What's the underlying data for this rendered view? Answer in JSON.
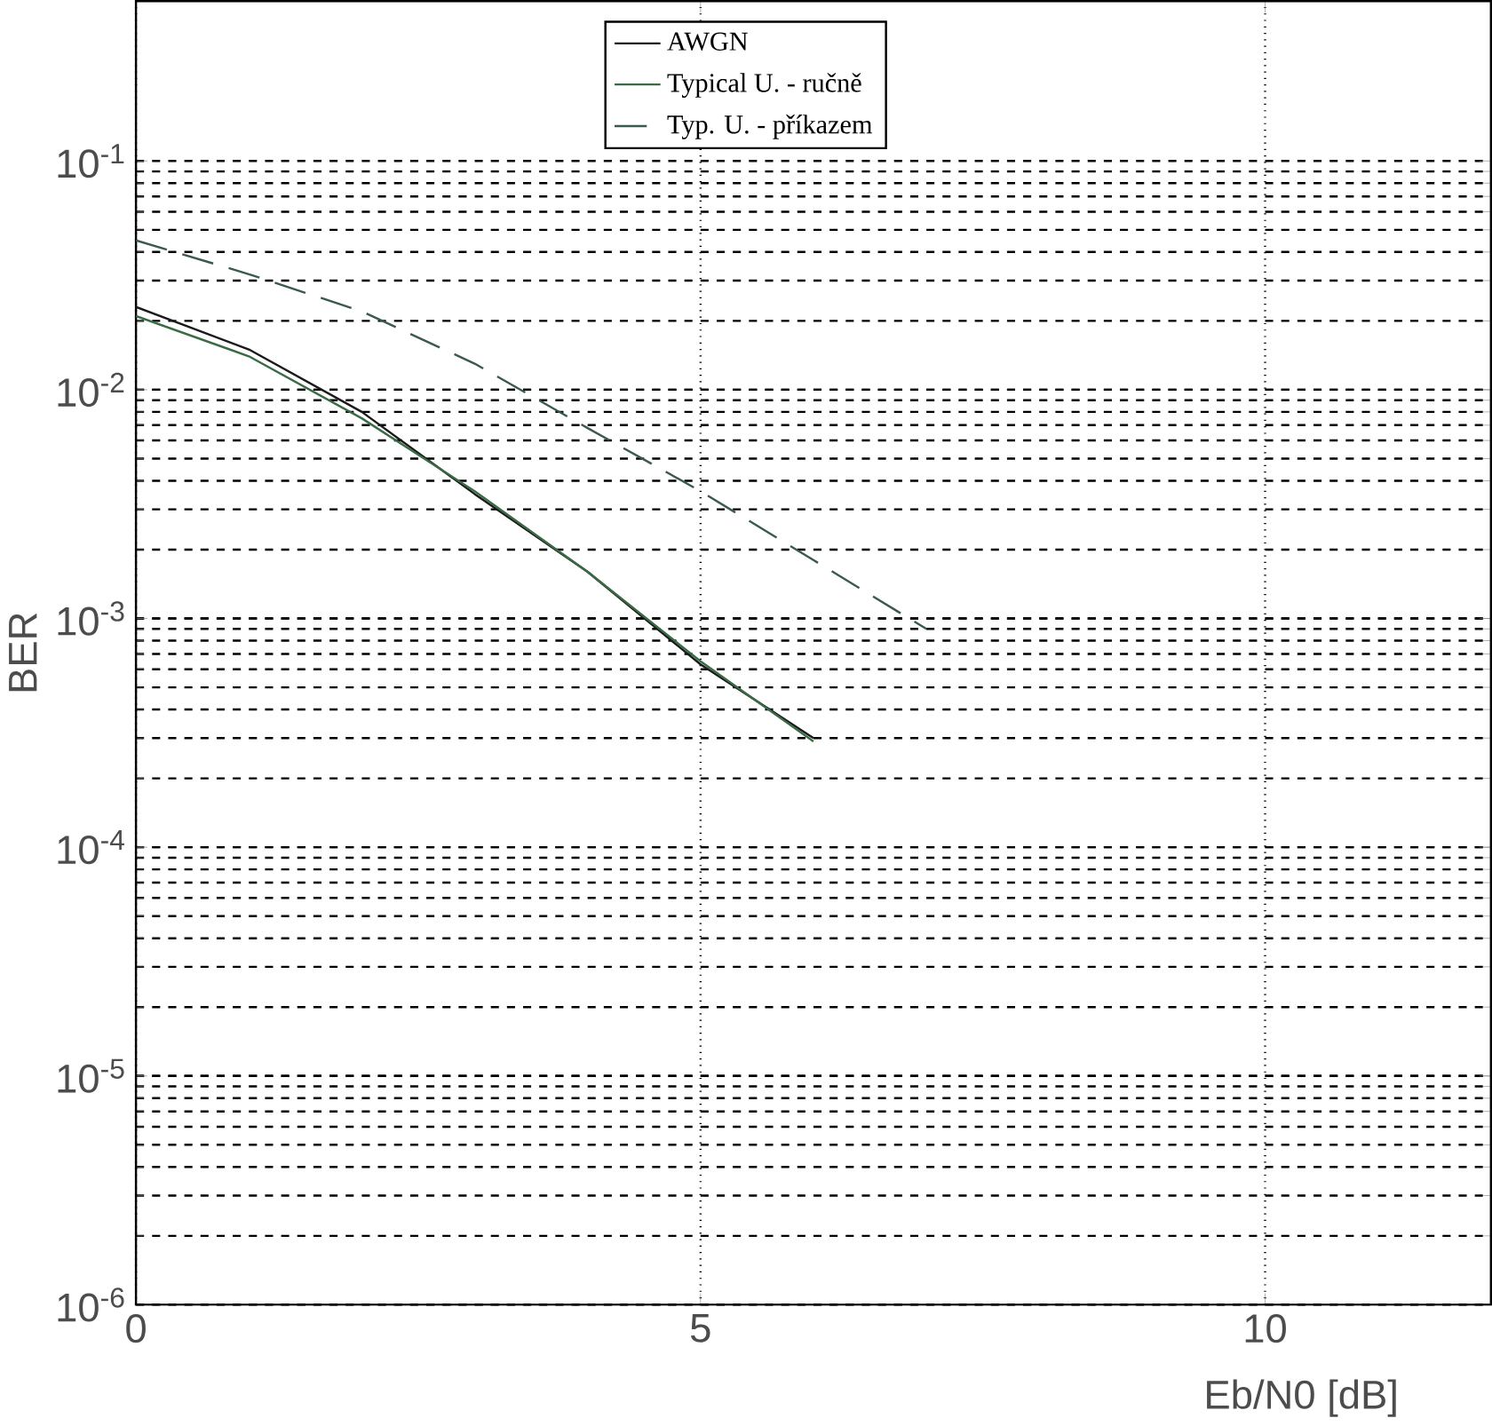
{
  "chart_data": {
    "type": "line",
    "xlabel": "Eb/N0 [dB]",
    "ylabel": "BER",
    "log": "y",
    "grid": true,
    "legend": "top",
    "line_style": "solid",
    "marker": "none",
    "xlim": [
      0,
      12
    ],
    "xticks": [
      0,
      5,
      10
    ],
    "ylim": [
      1e-06,
      0.5
    ],
    "yticks": [
      {
        "value": 1e-06,
        "label": "10$^{-6}$"
      },
      {
        "value": 1e-05,
        "label": "10$^{-5}$"
      },
      {
        "value": 0.0001,
        "label": "10$^{-4}$"
      },
      {
        "value": 0.001,
        "label": "10$^{-3}$"
      },
      {
        "value": 0.01,
        "label": "10$^{-2}$"
      },
      {
        "value": 0.1,
        "label": "10$^{-1}$"
      }
    ],
    "series": [
      {
        "name": "AWGN",
        "color": "#1a1a1a",
        "x": [
          0,
          1,
          2,
          3,
          4,
          5,
          6
        ],
        "values": [
          0.023,
          0.015,
          0.008,
          0.0035,
          0.0016,
          0.00063,
          0.0003
        ]
      },
      {
        "name": "Typical U. - ručně",
        "color": "#3a6b45",
        "x": [
          0,
          1,
          2,
          3,
          4,
          5,
          6
        ],
        "values": [
          0.021,
          0.014,
          0.0075,
          0.0036,
          0.0016,
          0.00065,
          0.00029
        ]
      },
      {
        "name": "Typ. U. - příkazem",
        "color": "#3a5a50",
        "line_style": "dashed",
        "x": [
          0,
          1,
          2,
          3,
          4,
          5,
          6,
          7
        ],
        "values": [
          0.045,
          0.032,
          0.022,
          0.013,
          0.0068,
          0.0036,
          0.0018,
          0.0009
        ]
      }
    ]
  }
}
